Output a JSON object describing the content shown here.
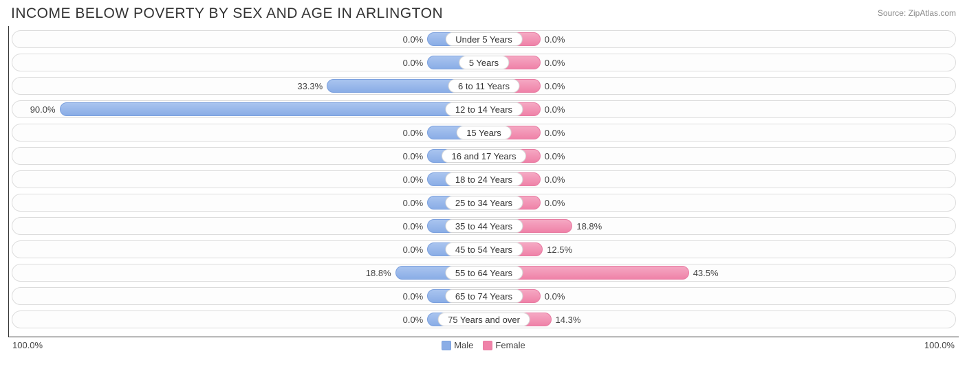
{
  "title": "INCOME BELOW POVERTY BY SEX AND AGE IN ARLINGTON",
  "source": "Source: ZipAtlas.com",
  "axis": {
    "left": "100.0%",
    "right": "100.0%",
    "max_pct": 100.0
  },
  "legend": {
    "male": "Male",
    "female": "Female"
  },
  "colors": {
    "male_fill_top": "#a9c4ef",
    "male_fill_bot": "#8aade6",
    "male_border": "#7ba0de",
    "female_fill_top": "#f5a8c3",
    "female_fill_bot": "#ef82a8",
    "female_border": "#e87ba2",
    "row_border": "#dcdcdc",
    "row_bg": "#fdfdfd",
    "text": "#444444",
    "title_color": "#333333",
    "source_color": "#888888",
    "axis_line": "#333333",
    "min_bar_pct": 12.0
  },
  "rows": [
    {
      "label": "Under 5 Years",
      "male": 0.0,
      "female": 0.0,
      "male_txt": "0.0%",
      "female_txt": "0.0%"
    },
    {
      "label": "5 Years",
      "male": 0.0,
      "female": 0.0,
      "male_txt": "0.0%",
      "female_txt": "0.0%"
    },
    {
      "label": "6 to 11 Years",
      "male": 33.3,
      "female": 0.0,
      "male_txt": "33.3%",
      "female_txt": "0.0%"
    },
    {
      "label": "12 to 14 Years",
      "male": 90.0,
      "female": 0.0,
      "male_txt": "90.0%",
      "female_txt": "0.0%"
    },
    {
      "label": "15 Years",
      "male": 0.0,
      "female": 0.0,
      "male_txt": "0.0%",
      "female_txt": "0.0%"
    },
    {
      "label": "16 and 17 Years",
      "male": 0.0,
      "female": 0.0,
      "male_txt": "0.0%",
      "female_txt": "0.0%"
    },
    {
      "label": "18 to 24 Years",
      "male": 0.0,
      "female": 0.0,
      "male_txt": "0.0%",
      "female_txt": "0.0%"
    },
    {
      "label": "25 to 34 Years",
      "male": 0.0,
      "female": 0.0,
      "male_txt": "0.0%",
      "female_txt": "0.0%"
    },
    {
      "label": "35 to 44 Years",
      "male": 0.0,
      "female": 18.8,
      "male_txt": "0.0%",
      "female_txt": "18.8%"
    },
    {
      "label": "45 to 54 Years",
      "male": 0.0,
      "female": 12.5,
      "male_txt": "0.0%",
      "female_txt": "12.5%"
    },
    {
      "label": "55 to 64 Years",
      "male": 18.8,
      "female": 43.5,
      "male_txt": "18.8%",
      "female_txt": "43.5%"
    },
    {
      "label": "65 to 74 Years",
      "male": 0.0,
      "female": 0.0,
      "male_txt": "0.0%",
      "female_txt": "0.0%"
    },
    {
      "label": "75 Years and over",
      "male": 0.0,
      "female": 14.3,
      "male_txt": "0.0%",
      "female_txt": "14.3%"
    }
  ]
}
